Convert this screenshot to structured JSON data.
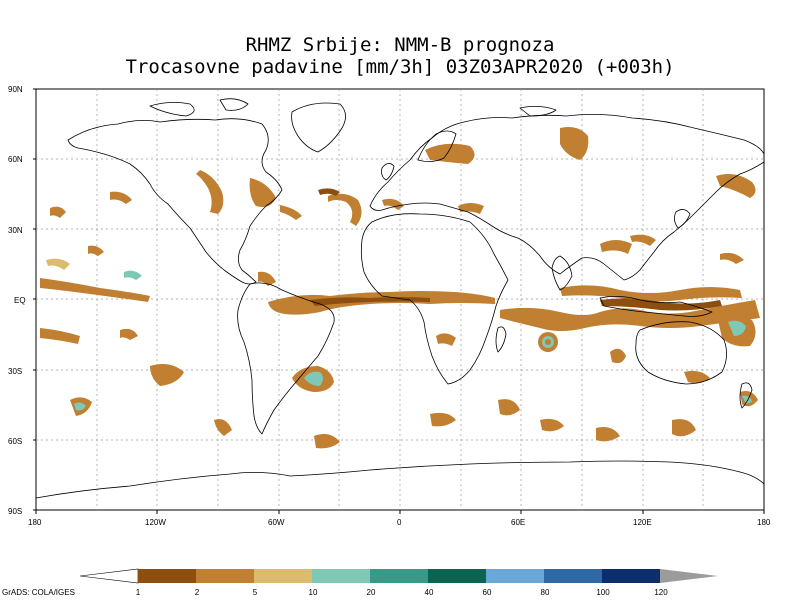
{
  "title_line1": "RHMZ Srbije: NMM-B prognoza",
  "title_line2": "Trocasovne padavine [mm/3h] 03Z03APR2020 (+003h)",
  "lat_labels": [
    "90N",
    "60N",
    "30N",
    "EQ",
    "30S",
    "60S",
    "90S"
  ],
  "lon_labels": [
    "180",
    "120W",
    "60W",
    "0",
    "60E",
    "120E",
    "180"
  ],
  "colorbar": {
    "ticks": [
      "1",
      "2",
      "5",
      "10",
      "20",
      "40",
      "60",
      "80",
      "100",
      "120"
    ],
    "colors": [
      "#8c4f0f",
      "#c17f32",
      "#dcbb6e",
      "#7fc8b6",
      "#3a9a8a",
      "#0b6452",
      "#6aa8d8",
      "#2e68a5",
      "#0c2e6d"
    ],
    "below_color": "#ffffff",
    "above_color": "#9b9b9b"
  },
  "credit": "GrADS: COLA/IGES",
  "map_colors": {
    "coast": "#000000",
    "grid": "#9a9a9a",
    "precip_light": "#c17f32",
    "precip_dark": "#8c4f0f",
    "precip_pale": "#dcbb6e",
    "precip_teal": "#7fc8b6"
  }
}
